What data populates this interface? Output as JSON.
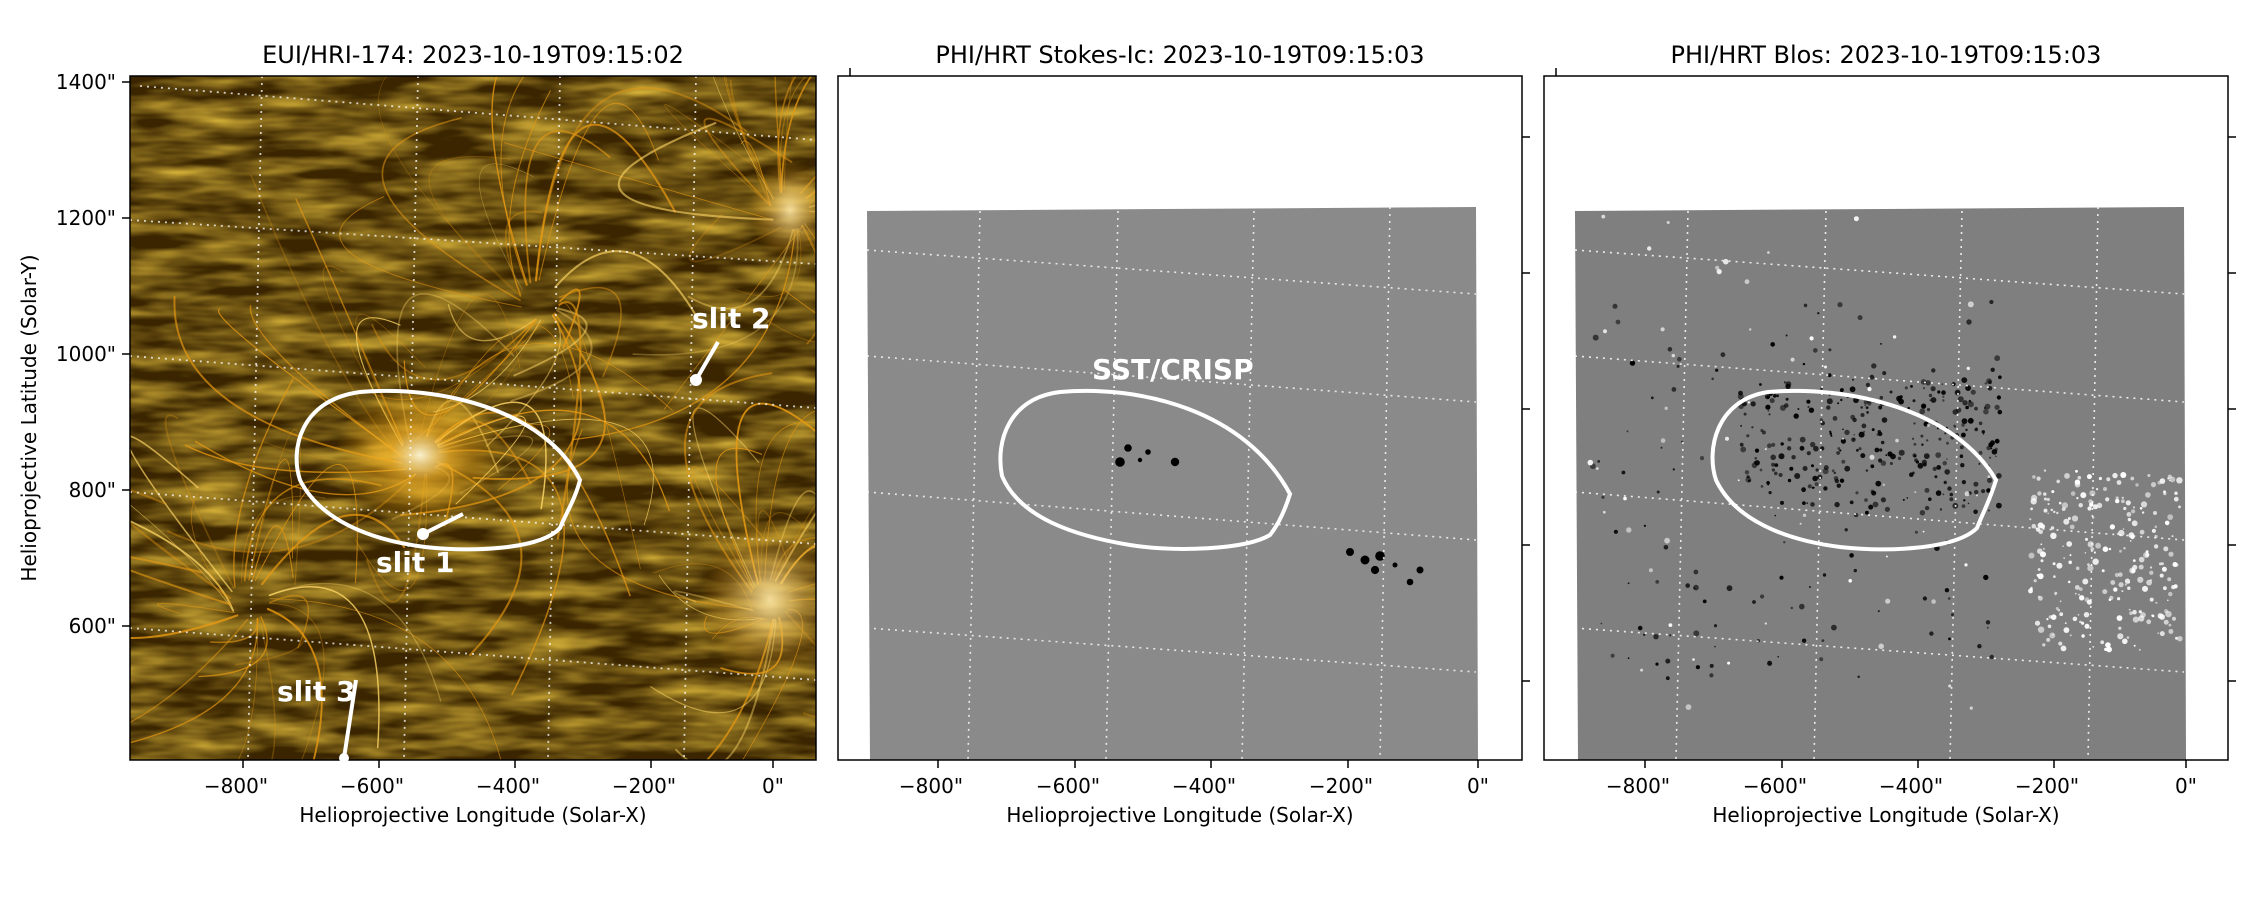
{
  "panels": [
    {
      "title": "EUI/HRI-174: 2023-10-19T09:15:02",
      "x_tick_labels": [
        "−800\"",
        "−600\"",
        "−400\"",
        "−200\"",
        "0\""
      ],
      "y_tick_labels": [
        "1400\"",
        "1200\"",
        "1000\"",
        "800\"",
        "600\""
      ],
      "xlabel": "Helioprojective Longitude (Solar-X)",
      "ylabel": "Helioprojective Latitude (Solar-Y)",
      "annotations": [
        "slit 2",
        "slit 1",
        "slit 3"
      ]
    },
    {
      "title": "PHI/HRT Stokes-Ic: 2023-10-19T09:15:03",
      "x_tick_labels": [
        "−800\"",
        "−600\"",
        "−400\"",
        "−200\"",
        "0\""
      ],
      "xlabel": "Helioprojective Longitude (Solar-X)",
      "annotations": [
        "SST/CRISP"
      ]
    },
    {
      "title": "PHI/HRT Blos: 2023-10-19T09:15:03",
      "x_tick_labels": [
        "−800\"",
        "−600\"",
        "−400\"",
        "−200\"",
        "0\""
      ],
      "xlabel": "Helioprojective Longitude (Solar-X)"
    }
  ],
  "colors": {
    "eui_dark": "#2a1a00",
    "eui_bright": "#f2a90f",
    "grey_bg": "#808080",
    "contour": "#ffffff"
  }
}
